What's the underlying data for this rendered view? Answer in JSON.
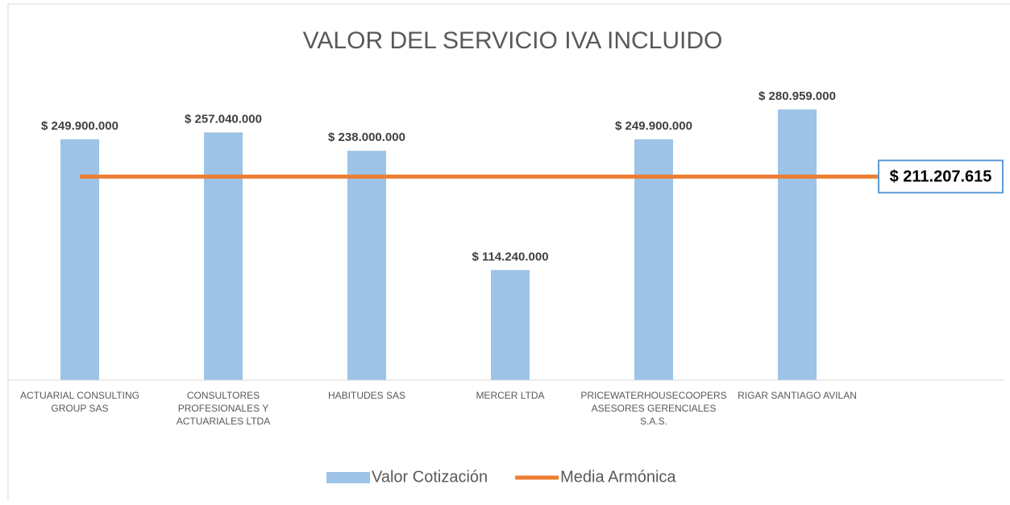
{
  "chart_data": {
    "type": "bar",
    "title": "VALOR DEL SERVICIO IVA INCLUIDO",
    "categories": [
      "ACTUARIAL CONSULTING GROUP SAS",
      "CONSULTORES PROFESIONALES Y ACTUARIALES LTDA",
      "HABITUDES SAS",
      "MERCER LTDA",
      "PRICEWATERHOUSECOOPERS ASESORES GERENCIALES S.A.S.",
      "RIGAR SANTIAGO AVILAN",
      null
    ],
    "ylim": [
      0,
      300000000
    ],
    "series": [
      {
        "name": "Valor Cotización",
        "type": "bar",
        "color": "#9dc3e6",
        "values": [
          249900000,
          257040000,
          238000000,
          114240000,
          249900000,
          280959000,
          null
        ],
        "value_labels": [
          "$ 249.900.000",
          "$ 257.040.000",
          "$ 238.000.000",
          "$ 114.240.000",
          "$ 249.900.000",
          "$ 280.959.000",
          null
        ]
      },
      {
        "name": "Media Armónica",
        "type": "line",
        "color": "#ed7d31",
        "values": [
          211207615,
          211207615,
          211207615,
          211207615,
          211207615,
          211207615,
          211207615
        ],
        "value_labels": [
          null,
          null,
          null,
          null,
          null,
          null,
          "$ 211.207.615"
        ]
      }
    ]
  }
}
